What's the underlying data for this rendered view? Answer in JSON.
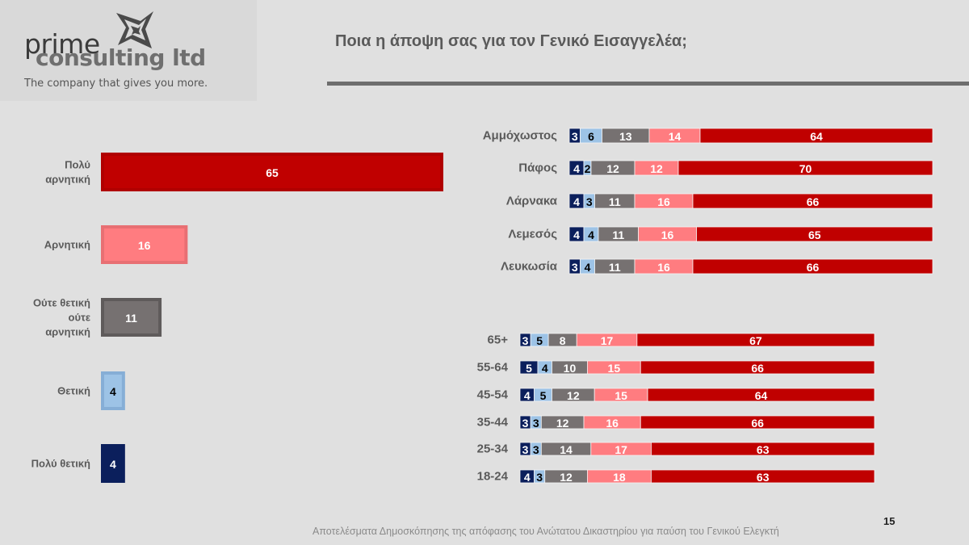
{
  "logo": {
    "word1": "prime",
    "word2": "consulting ltd",
    "tagline": "The company that gives you more.",
    "icon": "star-diamond-icon"
  },
  "header": {
    "title": "Ποια η άποψη σας για τον Γενικό Εισαγγελέα;"
  },
  "footer": {
    "text": "Αποτελέσματα Δημοσκόπησης της απόφασης του Ανώτατου Δικαστηρίου για παύση του Γενικού Ελεγκτή",
    "page_number": "15"
  },
  "colors": {
    "very_negative": "#c00000",
    "negative": "#ff7c80",
    "neutral": "#767171",
    "positive": "#9dc3e6",
    "very_positive": "#0b1f5c",
    "background": "#e0e0e0"
  },
  "chart_data": [
    {
      "type": "bar",
      "orientation": "horizontal",
      "title": "Overall",
      "categories": [
        "Πολύ αρνητική",
        "Αρνητική",
        "Ούτε θετική ούτε αρνητική",
        "Θετική",
        "Πολύ θετική"
      ],
      "category_lines": [
        [
          "Πολύ",
          "αρνητική"
        ],
        [
          "Αρνητική"
        ],
        [
          "Ούτε θετική",
          "ούτε",
          "αρνητική"
        ],
        [
          "Θετική"
        ],
        [
          "Πολύ θετική"
        ]
      ],
      "values": [
        65,
        16,
        11,
        4,
        4
      ],
      "data_labels": true,
      "xlim": [
        0,
        65
      ],
      "grid": false,
      "legend": "none"
    },
    {
      "type": "bar",
      "stacked": true,
      "orientation": "horizontal",
      "title": "By district",
      "categories": [
        "Αμμόχωστος",
        "Πάφος",
        "Λάρνακα",
        "Λεμεσός",
        "Λευκωσία"
      ],
      "series": [
        {
          "name": "Πολύ θετική",
          "values": [
            3,
            4,
            4,
            4,
            3
          ]
        },
        {
          "name": "Θετική",
          "values": [
            6,
            2,
            3,
            4,
            4
          ]
        },
        {
          "name": "Ούτε θετική ούτε αρνητική",
          "values": [
            13,
            12,
            11,
            11,
            11
          ]
        },
        {
          "name": "Αρνητική",
          "values": [
            14,
            12,
            16,
            16,
            16
          ]
        },
        {
          "name": "Πολύ αρνητική",
          "values": [
            64,
            70,
            66,
            65,
            66
          ]
        }
      ],
      "data_labels": true,
      "grid": false,
      "legend": "none"
    },
    {
      "type": "bar",
      "stacked": true,
      "orientation": "horizontal",
      "title": "By age",
      "categories": [
        "65+",
        "55-64",
        "45-54",
        "35-44",
        "25-34",
        "18-24"
      ],
      "series": [
        {
          "name": "Πολύ θετική",
          "values": [
            3,
            5,
            4,
            3,
            3,
            4
          ]
        },
        {
          "name": "Θετική",
          "values": [
            5,
            4,
            5,
            3,
            3,
            3
          ]
        },
        {
          "name": "Ούτε θετική ούτε αρνητική",
          "values": [
            8,
            10,
            12,
            12,
            14,
            12
          ]
        },
        {
          "name": "Αρνητική",
          "values": [
            17,
            15,
            15,
            16,
            17,
            18
          ]
        },
        {
          "name": "Πολύ αρνητική",
          "values": [
            67,
            66,
            64,
            66,
            63,
            63
          ]
        }
      ],
      "data_labels": true,
      "grid": false,
      "legend": "none"
    }
  ]
}
